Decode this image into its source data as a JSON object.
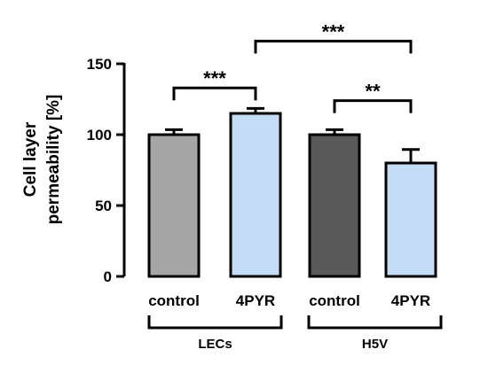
{
  "chart_data": {
    "type": "bar",
    "ylabel_lines": [
      "Cell layer",
      "permeability [%]"
    ],
    "ylim": [
      0,
      150
    ],
    "yticks": [
      "0",
      "50",
      "100",
      "150"
    ],
    "ytick_values": [
      0,
      50,
      100,
      150
    ],
    "categories": [
      "control",
      "4PYR",
      "control",
      "4PYR"
    ],
    "values": [
      100,
      115,
      100,
      80
    ],
    "errors": [
      3.5,
      3.5,
      3.5,
      9.5
    ],
    "bar_colors": [
      "#a6a6a6",
      "#c5dcf7",
      "#595959",
      "#c5dcf7"
    ],
    "groups": [
      {
        "label": "LECs",
        "members": [
          0,
          1
        ]
      },
      {
        "label": "H5V",
        "members": [
          2,
          3
        ]
      }
    ],
    "significance": [
      {
        "from": 0,
        "to": 1,
        "label": "***",
        "y": 133
      },
      {
        "from": 2,
        "to": 3,
        "label": "**",
        "y": 124
      },
      {
        "from": 1,
        "to": 3,
        "label": "***",
        "y": 166
      }
    ]
  }
}
